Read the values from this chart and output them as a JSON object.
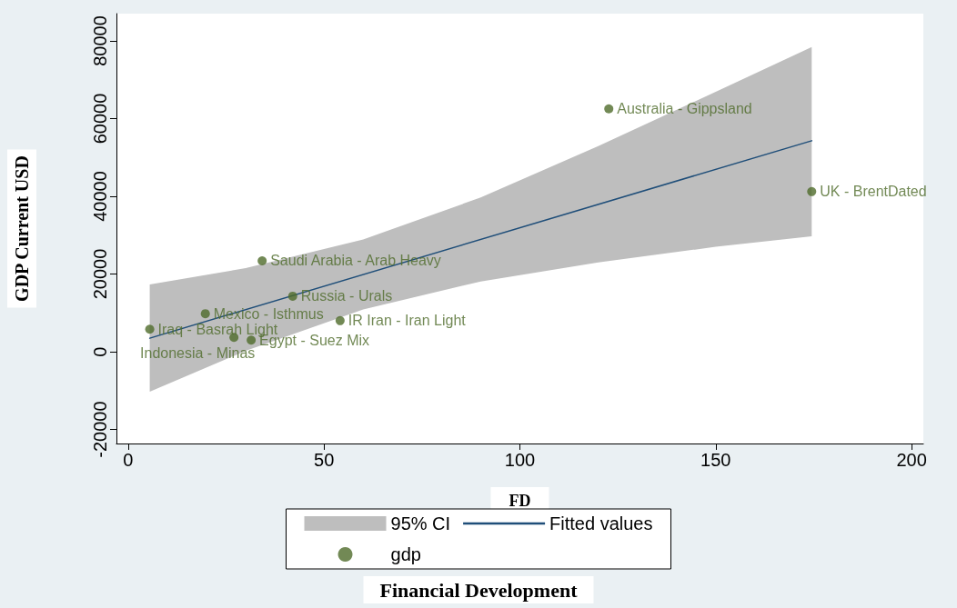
{
  "chart_data": {
    "type": "scatter",
    "xlabel": "FD",
    "ylabel": "GDP Current USD",
    "xlim": [
      -3,
      203
    ],
    "ylim": [
      -23600,
      87000
    ],
    "xticks": [
      0,
      50,
      100,
      150,
      200
    ],
    "yticks": [
      -20000,
      0,
      20000,
      40000,
      60000,
      80000
    ],
    "grid": false,
    "legend": "bottom",
    "annotations": [
      "Financial Development"
    ],
    "series": [
      {
        "type": "area",
        "name": "95% CI",
        "color": "#bebebe",
        "x": [
          5.5,
          30,
          60,
          90,
          120,
          150,
          174.5
        ],
        "values": [
          null,
          null,
          null,
          null,
          null,
          null,
          null
        ],
        "lower": [
          -10300,
          250,
          10900,
          18100,
          23000,
          27000,
          29700
        ],
        "upper": [
          17300,
          21500,
          28900,
          39700,
          52900,
          66900,
          78400
        ]
      },
      {
        "type": "line",
        "name": "Fitted values",
        "color": "#1f4e79",
        "line_style": "solid",
        "x": [
          5.5,
          174.5
        ],
        "values": [
          3500,
          54300
        ]
      },
      {
        "name": "gdp",
        "marker": "circle",
        "color": "#4f6b2a",
        "x": [
          5.5,
          19.7,
          27,
          31.4,
          34.2,
          42,
          54.1,
          122.7,
          174.5
        ],
        "values": [
          5800,
          9800,
          3700,
          3000,
          23400,
          14300,
          8000,
          62500,
          41200
        ],
        "value_labels": [
          "Iraq - Basrah Light",
          "Mexico - Isthmus",
          "Indonesia - Minas",
          "Egypt - Suez Mix",
          "Saudi Arabia - Arab Heavy",
          "Russia - Urals",
          "IR Iran - Iran Light",
          "Australia - Gippsland",
          "UK - BrentDated"
        ]
      }
    ]
  }
}
